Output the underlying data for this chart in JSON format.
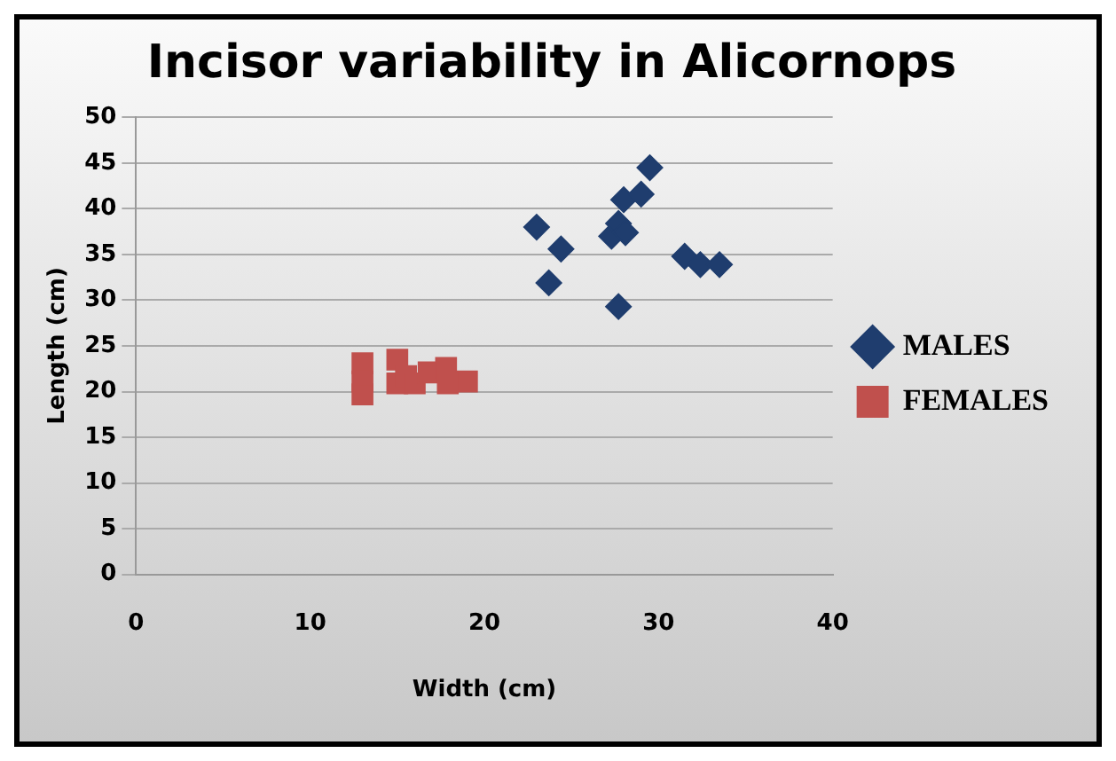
{
  "chart_data": {
    "type": "scatter",
    "title": "Incisor variability in Alicornops",
    "xlabel": "Width (cm)",
    "ylabel": "Length (cm)",
    "xlim": [
      0,
      40
    ],
    "xticks": [
      0,
      10,
      20,
      30,
      40
    ],
    "ylim": [
      0,
      50
    ],
    "yticks": [
      0,
      5,
      10,
      15,
      20,
      25,
      30,
      35,
      40,
      45,
      50
    ],
    "grid": "y",
    "legend": "right",
    "series": [
      {
        "name": "MALES",
        "color": "#1f3d6e",
        "marker": "diamond",
        "x": [
          23.0,
          23.7,
          24.4,
          27.3,
          27.7,
          28.1,
          28.0,
          29.0,
          29.5,
          27.7,
          31.5,
          32.4,
          33.5
        ],
        "values": [
          38.0,
          31.9,
          35.6,
          37.0,
          38.4,
          37.4,
          41.0,
          41.6,
          44.5,
          29.3,
          34.8,
          33.9,
          33.9
        ]
      },
      {
        "name": "FEMALES",
        "color": "#c0504d",
        "marker": "square",
        "x": [
          13.0,
          13.0,
          13.0,
          15.0,
          15.0,
          15.5,
          16.0,
          16.8,
          17.8,
          17.9,
          19.0
        ],
        "values": [
          23.1,
          21.1,
          19.7,
          23.5,
          20.9,
          21.7,
          20.9,
          22.1,
          22.6,
          20.9,
          21.1
        ]
      }
    ]
  }
}
